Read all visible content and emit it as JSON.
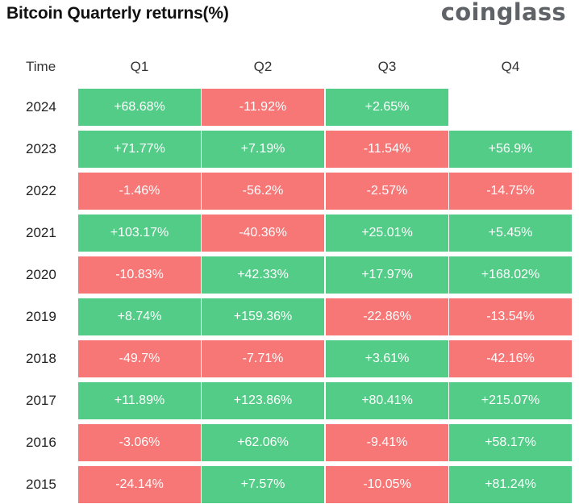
{
  "title": "Bitcoin Quarterly returns(%)",
  "brand": "coinglass",
  "colors": {
    "positive": "#52cc87",
    "negative": "#f77676"
  },
  "chart_data": {
    "type": "table",
    "title": "Bitcoin Quarterly returns(%)",
    "columns": [
      "Time",
      "Q1",
      "Q2",
      "Q3",
      "Q4"
    ],
    "rows": [
      {
        "year": "2024",
        "values": [
          "+68.68%",
          "-11.92%",
          "+2.65%",
          ""
        ]
      },
      {
        "year": "2023",
        "values": [
          "+71.77%",
          "+7.19%",
          "-11.54%",
          "+56.9%"
        ]
      },
      {
        "year": "2022",
        "values": [
          "-1.46%",
          "-56.2%",
          "-2.57%",
          "-14.75%"
        ]
      },
      {
        "year": "2021",
        "values": [
          "+103.17%",
          "-40.36%",
          "+25.01%",
          "+5.45%"
        ]
      },
      {
        "year": "2020",
        "values": [
          "-10.83%",
          "+42.33%",
          "+17.97%",
          "+168.02%"
        ]
      },
      {
        "year": "2019",
        "values": [
          "+8.74%",
          "+159.36%",
          "-22.86%",
          "-13.54%"
        ]
      },
      {
        "year": "2018",
        "values": [
          "-49.7%",
          "-7.71%",
          "+3.61%",
          "-42.16%"
        ]
      },
      {
        "year": "2017",
        "values": [
          "+11.89%",
          "+123.86%",
          "+80.41%",
          "+215.07%"
        ]
      },
      {
        "year": "2016",
        "values": [
          "-3.06%",
          "+62.06%",
          "-9.41%",
          "+58.17%"
        ]
      },
      {
        "year": "2015",
        "values": [
          "-24.14%",
          "+7.57%",
          "-10.05%",
          "+81.24%"
        ]
      }
    ]
  }
}
